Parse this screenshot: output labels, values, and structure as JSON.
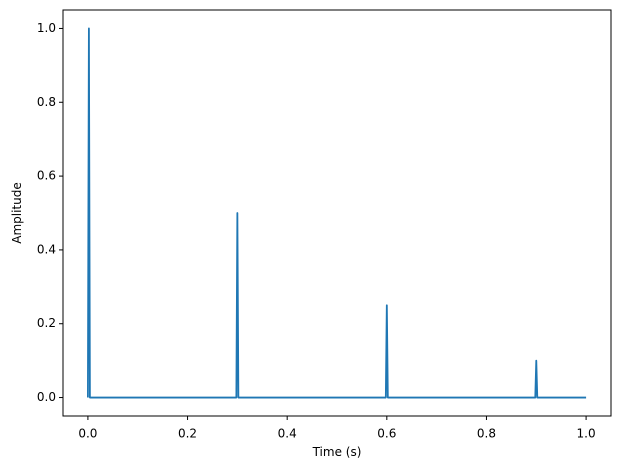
{
  "chart_data": {
    "type": "line",
    "x_label": "Time (s)",
    "y_label": "Amplitude",
    "x": [
      0,
      0.002,
      0.004,
      0.298,
      0.3,
      0.302,
      0.598,
      0.6,
      0.602,
      0.898,
      0.9,
      0.902,
      1.0
    ],
    "series": [
      {
        "color": "#1f77b4",
        "values": [
          0,
          1.0,
          0,
          0,
          0.5,
          0,
          0,
          0.25,
          0,
          0,
          0.1,
          0,
          0
        ]
      }
    ],
    "xlim": [
      -0.05,
      1.05
    ],
    "ylim": [
      -0.05,
      1.05
    ],
    "xticks": [
      {
        "value": 0,
        "label": "0.0"
      },
      {
        "value": 0.2,
        "label": "0.2"
      },
      {
        "value": 0.4,
        "label": "0.4"
      },
      {
        "value": 0.6,
        "label": "0.6"
      },
      {
        "value": 0.8,
        "label": "0.8"
      },
      {
        "value": 1,
        "label": "1.0"
      }
    ],
    "yticks": [
      {
        "value": 0,
        "label": "0.0"
      },
      {
        "value": 0.2,
        "label": "0.2"
      },
      {
        "value": 0.4,
        "label": "0.4"
      },
      {
        "value": 0.6,
        "label": "0.6"
      },
      {
        "value": 0.8,
        "label": "0.8"
      },
      {
        "value": 1,
        "label": "1.0"
      }
    ],
    "grid": false
  }
}
